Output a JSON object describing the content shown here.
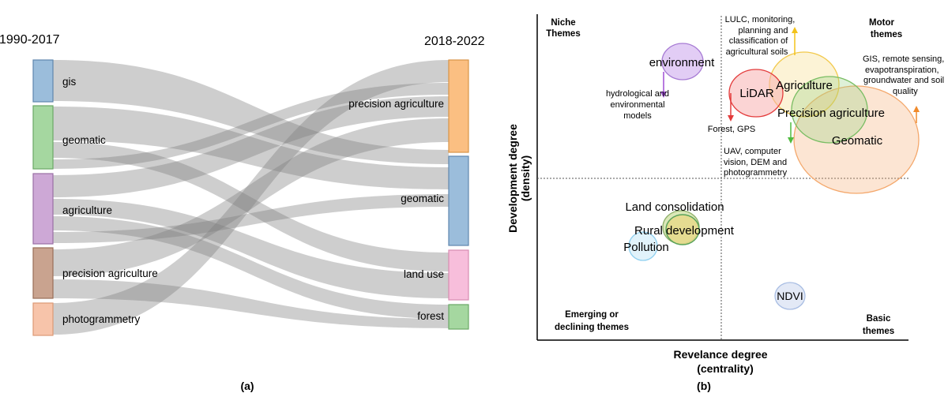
{
  "sankey": {
    "period_left": "1990-2017",
    "period_right": "2018-2022",
    "caption": "(a)",
    "left_nodes": [
      {
        "label": "gis",
        "color": "#9bbddb"
      },
      {
        "label": "geomatic",
        "color": "#a5d7a0"
      },
      {
        "label": "agriculture",
        "color": "#cda8d6"
      },
      {
        "label": "precision agriculture",
        "color": "#c9a38f"
      },
      {
        "label": "photogrammetry",
        "color": "#f7c4aa"
      }
    ],
    "right_nodes": [
      {
        "label": "precision agriculture",
        "color": "#fbbf82"
      },
      {
        "label": "geomatic",
        "color": "#9bbddb"
      },
      {
        "label": "land use",
        "color": "#f7bedb"
      },
      {
        "label": "forest",
        "color": "#a5d7a0"
      }
    ],
    "flows": [
      {
        "from": "gis",
        "to": "geomatic"
      },
      {
        "from": "geomatic",
        "to": "geomatic"
      },
      {
        "from": "geomatic",
        "to": "land use"
      },
      {
        "from": "geomatic",
        "to": "precision agriculture"
      },
      {
        "from": "agriculture",
        "to": "precision agriculture"
      },
      {
        "from": "agriculture",
        "to": "land use"
      },
      {
        "from": "agriculture",
        "to": "forest"
      },
      {
        "from": "agriculture",
        "to": "geomatic"
      },
      {
        "from": "precision agriculture",
        "to": "precision agriculture"
      },
      {
        "from": "precision agriculture",
        "to": "forest"
      },
      {
        "from": "photogrammetry",
        "to": "precision agriculture"
      }
    ]
  },
  "strategic": {
    "caption": "(b)",
    "y_axis_label_1": "Development degree",
    "y_axis_label_2": "(density)",
    "x_axis_label_1": "Revelance degree",
    "x_axis_label_2": "(centrality)",
    "quadrants": {
      "niche_1": "Niche",
      "niche_2": "Themes",
      "motor_1": "Motor",
      "motor_2": "themes",
      "emerging_1": "Emerging or",
      "emerging_2": "declining themes",
      "basic_1": "Basic",
      "basic_2": "themes"
    },
    "themes": [
      {
        "label": "environment",
        "color": "#c5a3e6"
      },
      {
        "label": "LiDAR",
        "color": "#e33b3b"
      },
      {
        "label": "Agriculture",
        "color": "#f5d36b"
      },
      {
        "label": "Precision agriculture",
        "color": "#93d07e"
      },
      {
        "label": "Geomatic",
        "color": "#f4a86c"
      },
      {
        "label": "Land consolidation",
        "color": "#b6d18f"
      },
      {
        "label": "Rural development",
        "color": "#5aa35a"
      },
      {
        "label": "Pollution",
        "color": "#8fd0f0"
      },
      {
        "label": "NDVI",
        "color": "#a8bde3"
      }
    ],
    "annotations": {
      "env_1": "hydrological and",
      "env_2": "environmental",
      "env_3": "models",
      "lidar_1": "Forest, GPS",
      "agri_1": "LULC, monitoring,",
      "agri_2": "planning and",
      "agri_3": "classification of",
      "agri_4": "agricultural soils",
      "prec_1": "UAV, computer",
      "prec_2": "vision, DEM and",
      "prec_3": "photogrammetry",
      "geo_1": "GIS, remote sensing,",
      "geo_2": "evapotranspiration,",
      "geo_3": "groundwater and soil",
      "geo_4": "quality"
    }
  }
}
